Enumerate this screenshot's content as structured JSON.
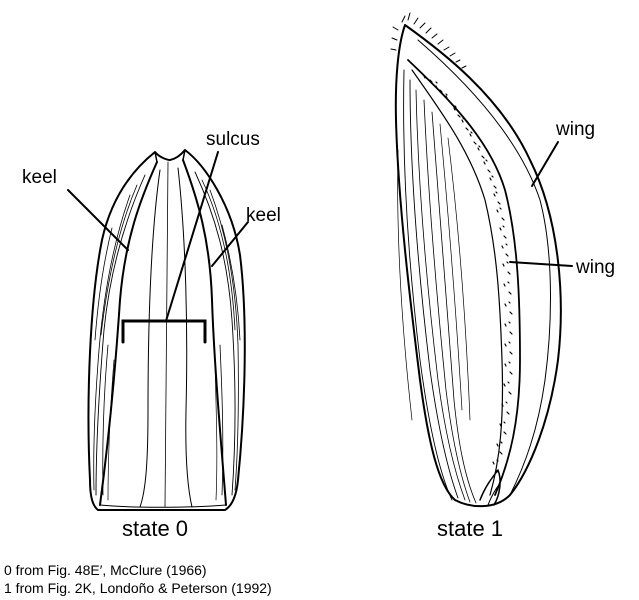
{
  "figure": {
    "left_panel": {
      "labels": {
        "keel_left": "keel",
        "sulcus": "sulcus",
        "keel_right": "keel"
      },
      "caption": "state 0"
    },
    "right_panel": {
      "labels": {
        "wing_outer": "wing",
        "wing_inner": "wing"
      },
      "caption": "state 1"
    },
    "credits": [
      "0 from Fig. 48E′, McClure (1966)",
      "1 from Fig. 2K, Londoño & Peterson (1992)"
    ]
  }
}
